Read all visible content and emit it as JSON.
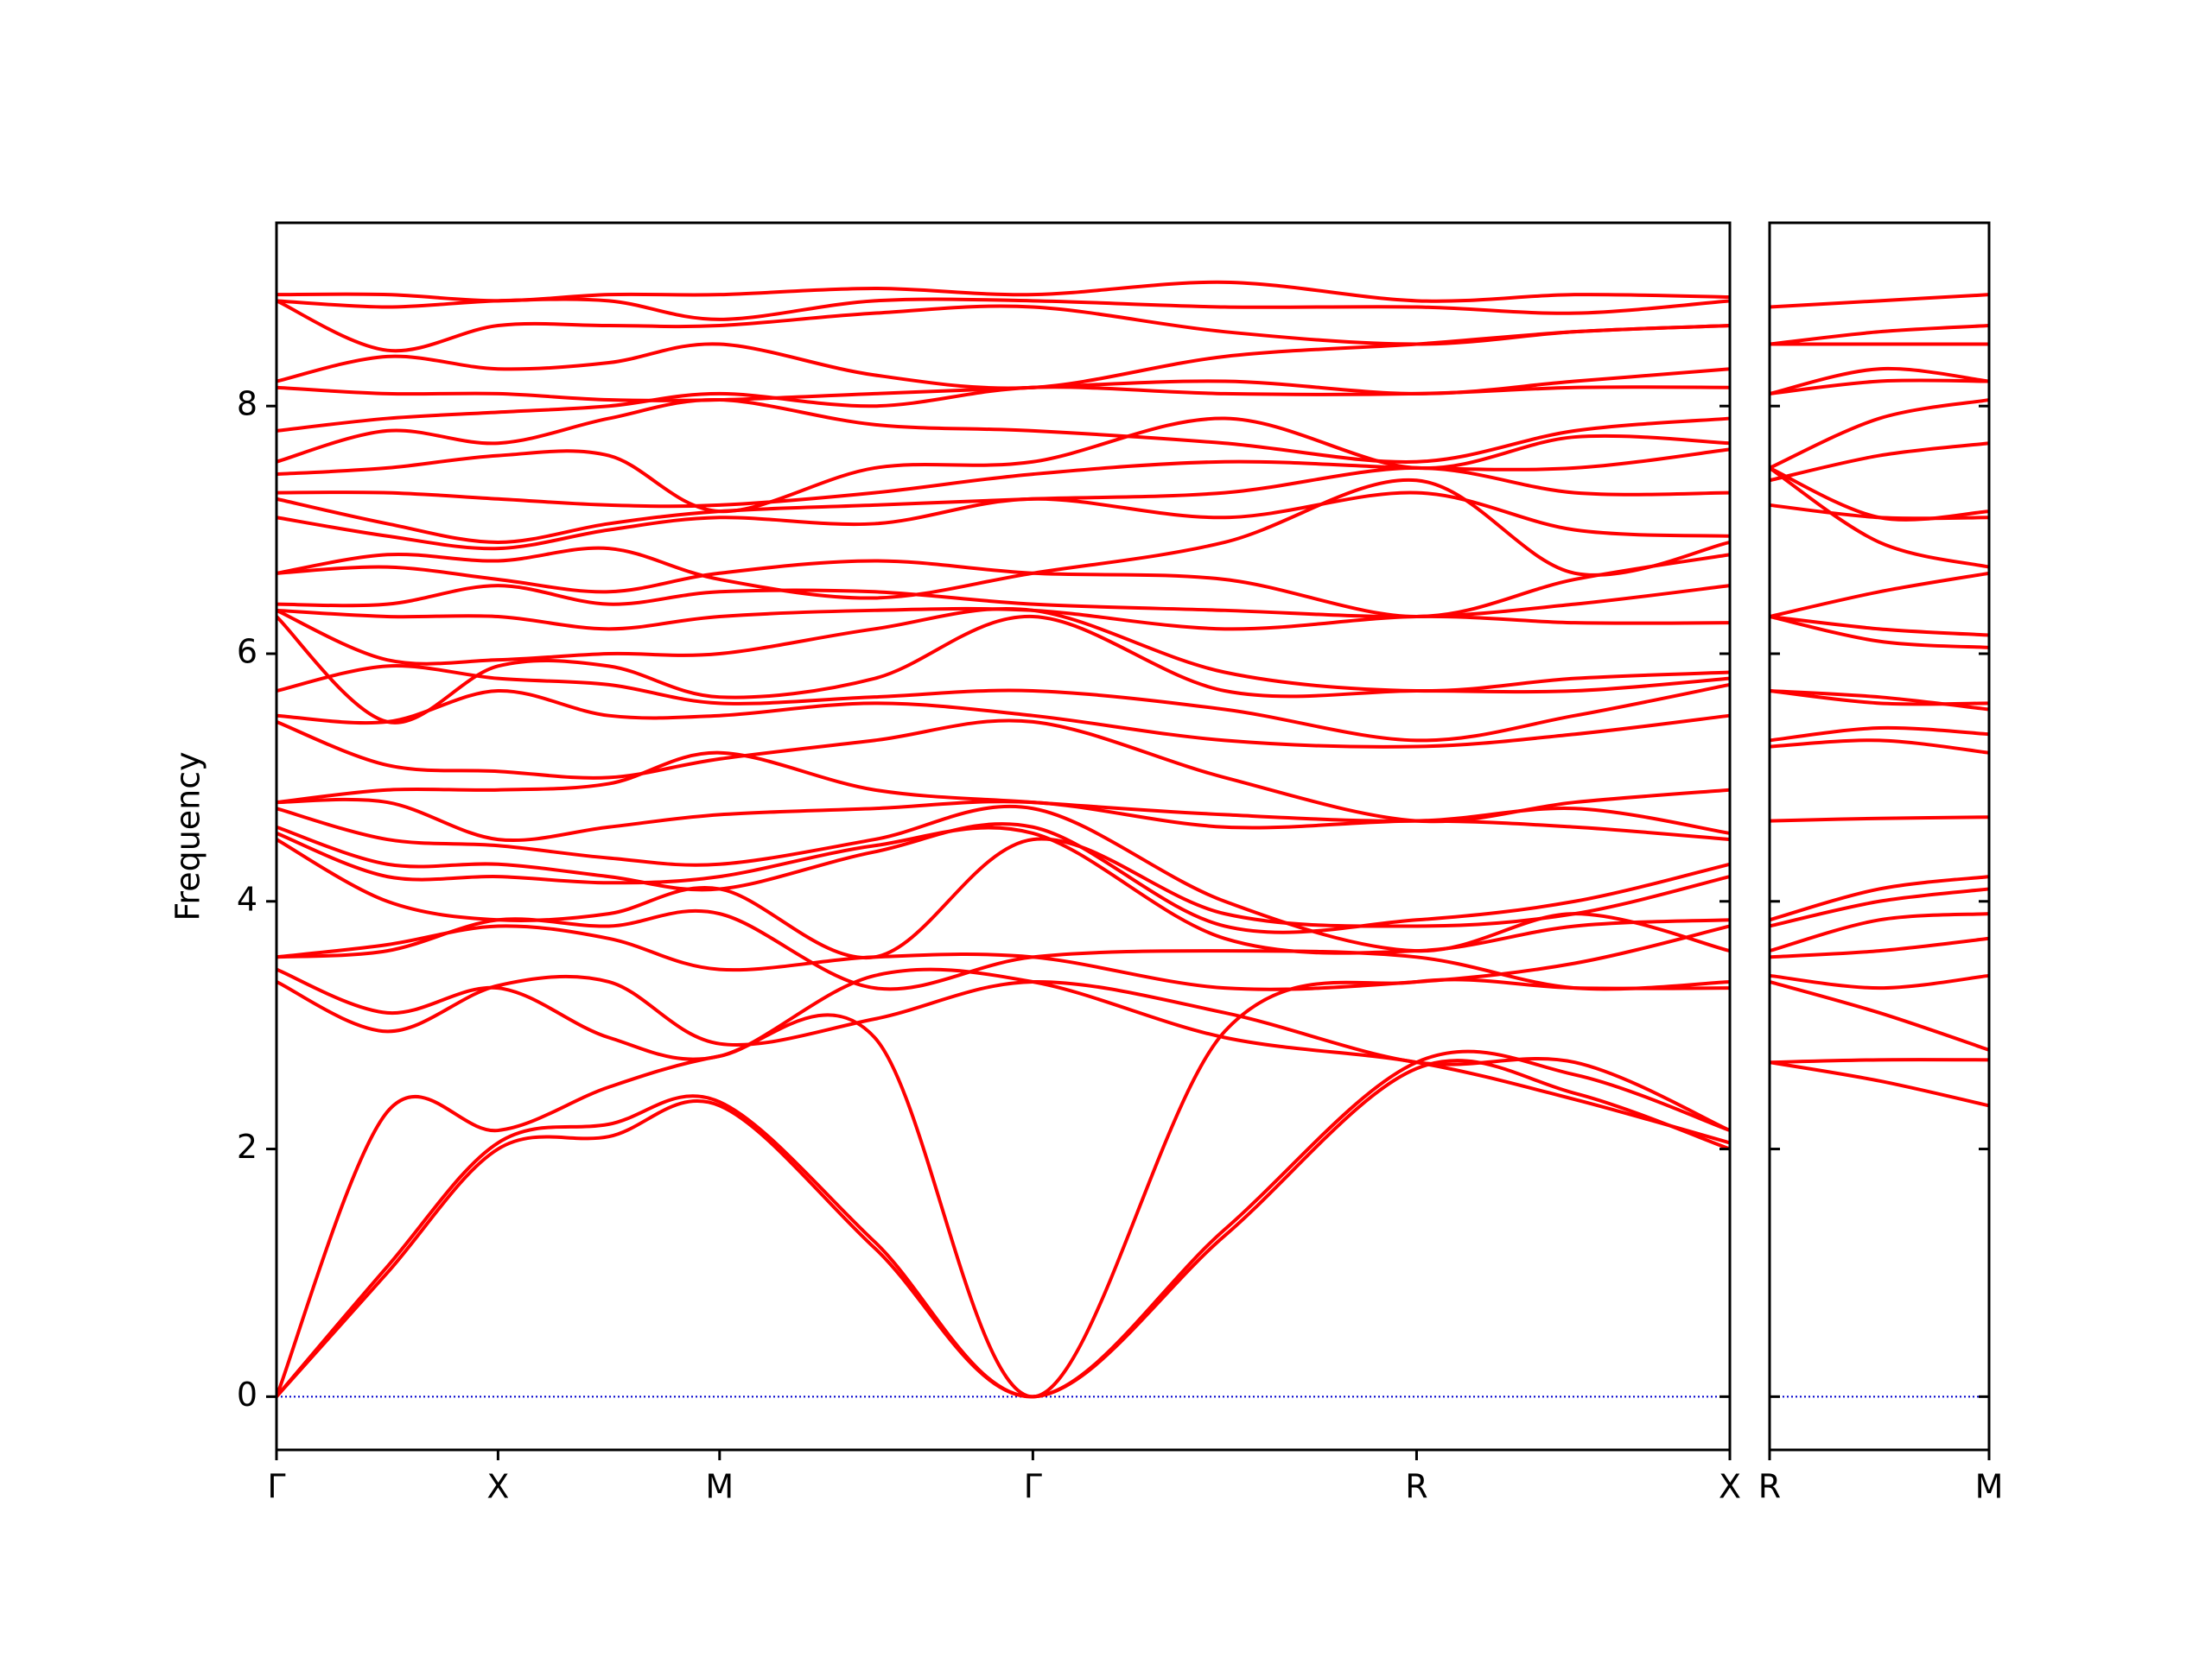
{
  "chart_data": [
    {
      "type": "line",
      "ylabel": "Frequency",
      "color": "#ff0000",
      "zero_line_color": "#0000cc",
      "xlim": [
        0,
        3.28
      ],
      "ylim": [
        -0.43,
        9.48
      ],
      "yticks": [
        0,
        2,
        4,
        6,
        8
      ],
      "xticks": [
        {
          "value": 0,
          "label": "Γ"
        },
        {
          "value": 0.5,
          "label": "X"
        },
        {
          "value": 1.0,
          "label": "M"
        },
        {
          "value": 1.707,
          "label": "Γ"
        },
        {
          "value": 2.573,
          "label": "R"
        },
        {
          "value": 3.28,
          "label": "X"
        }
      ],
      "x": [
        0,
        0.25,
        0.5,
        0.75,
        1.0,
        1.35,
        1.707,
        2.14,
        2.573,
        2.93,
        3.28
      ],
      "series": [
        {
          "values": [
            0,
            1.0,
            2.0,
            2.1,
            2.35,
            1.2,
            0,
            1.3,
            2.65,
            2.45,
            2.0
          ]
        },
        {
          "values": [
            0,
            1.05,
            2.05,
            2.2,
            2.38,
            1.25,
            0,
            1.35,
            2.7,
            2.6,
            2.15
          ]
        },
        {
          "values": [
            0,
            2.3,
            2.15,
            2.5,
            2.75,
            2.9,
            0,
            2.95,
            3.35,
            3.3,
            3.3
          ]
        },
        {
          "values": [
            3.35,
            2.95,
            3.32,
            3.35,
            2.85,
            3.05,
            3.35,
            3.1,
            2.7,
            2.7,
            2.15
          ]
        },
        {
          "values": [
            3.45,
            3.1,
            3.3,
            2.9,
            2.75,
            3.4,
            3.35,
            2.9,
            2.7,
            2.4,
            2.05
          ]
        },
        {
          "values": [
            3.55,
            3.65,
            3.8,
            3.7,
            3.45,
            3.55,
            3.55,
            3.3,
            3.35,
            3.5,
            3.8
          ]
        },
        {
          "values": [
            3.55,
            3.6,
            3.85,
            3.8,
            3.9,
            3.3,
            3.55,
            3.6,
            3.55,
            3.3,
            3.35
          ]
        },
        {
          "values": [
            4.5,
            4.0,
            3.85,
            3.9,
            4.1,
            3.55,
            4.5,
            3.9,
            3.8,
            3.9,
            4.2
          ]
        },
        {
          "values": [
            4.55,
            4.2,
            4.2,
            4.15,
            4.2,
            4.45,
            4.55,
            3.7,
            3.6,
            3.8,
            3.85
          ]
        },
        {
          "values": [
            4.6,
            4.3,
            4.3,
            4.2,
            4.1,
            4.4,
            4.6,
            3.8,
            3.85,
            4.0,
            4.3
          ]
        },
        {
          "values": [
            4.75,
            4.5,
            4.45,
            4.35,
            4.3,
            4.5,
            4.75,
            4.0,
            3.6,
            3.9,
            3.6
          ]
        },
        {
          "values": [
            4.8,
            4.8,
            4.5,
            4.6,
            4.7,
            4.75,
            4.8,
            4.6,
            4.65,
            4.6,
            4.5
          ]
        },
        {
          "values": [
            4.8,
            4.9,
            4.9,
            4.95,
            5.2,
            4.9,
            4.8,
            4.7,
            4.65,
            4.75,
            4.55
          ]
        },
        {
          "values": [
            5.45,
            5.1,
            5.05,
            5.0,
            5.15,
            5.3,
            5.45,
            5.0,
            4.65,
            4.8,
            4.9
          ]
        },
        {
          "values": [
            5.5,
            5.45,
            5.7,
            5.5,
            5.5,
            5.6,
            5.5,
            5.3,
            5.25,
            5.35,
            5.5
          ]
        },
        {
          "values": [
            5.7,
            5.9,
            5.8,
            5.75,
            5.6,
            5.65,
            5.7,
            5.55,
            5.3,
            5.5,
            5.75
          ]
        },
        {
          "values": [
            6.3,
            5.45,
            5.9,
            5.9,
            5.65,
            5.8,
            6.3,
            5.7,
            5.7,
            5.7,
            5.8
          ]
        },
        {
          "values": [
            6.35,
            5.95,
            5.95,
            6.0,
            6.0,
            6.2,
            6.35,
            5.85,
            5.7,
            5.8,
            5.85
          ]
        },
        {
          "values": [
            6.35,
            6.3,
            6.3,
            6.2,
            6.3,
            6.35,
            6.35,
            6.2,
            6.3,
            6.25,
            6.25
          ]
        },
        {
          "values": [
            6.4,
            6.4,
            6.55,
            6.4,
            6.5,
            6.5,
            6.4,
            6.35,
            6.3,
            6.4,
            6.55
          ]
        },
        {
          "values": [
            6.65,
            6.7,
            6.6,
            6.5,
            6.65,
            6.75,
            6.65,
            6.6,
            6.3,
            6.6,
            6.8
          ]
        },
        {
          "values": [
            6.65,
            6.8,
            6.75,
            6.85,
            6.6,
            6.45,
            6.65,
            6.9,
            7.4,
            6.65,
            6.9
          ]
        },
        {
          "values": [
            7.1,
            6.95,
            6.85,
            7.0,
            7.1,
            7.05,
            7.25,
            7.1,
            7.3,
            7.0,
            6.95
          ]
        },
        {
          "values": [
            7.25,
            7.05,
            6.9,
            7.05,
            7.15,
            7.2,
            7.25,
            7.3,
            7.5,
            7.3,
            7.3
          ]
        },
        {
          "values": [
            7.3,
            7.3,
            7.25,
            7.2,
            7.2,
            7.3,
            7.45,
            7.55,
            7.5,
            7.5,
            7.65
          ]
        },
        {
          "values": [
            7.45,
            7.5,
            7.6,
            7.6,
            7.15,
            7.5,
            7.55,
            7.9,
            7.5,
            7.75,
            7.7
          ]
        },
        {
          "values": [
            7.55,
            7.8,
            7.7,
            7.9,
            8.05,
            7.85,
            7.8,
            7.7,
            7.55,
            7.8,
            7.9
          ]
        },
        {
          "values": [
            7.8,
            7.9,
            7.95,
            8.0,
            8.1,
            8.0,
            8.15,
            8.1,
            8.1,
            8.15,
            8.15
          ]
        },
        {
          "values": [
            8.15,
            8.1,
            8.1,
            8.05,
            8.05,
            8.1,
            8.15,
            8.2,
            8.1,
            8.2,
            8.3
          ]
        },
        {
          "values": [
            8.2,
            8.4,
            8.3,
            8.35,
            8.5,
            8.25,
            8.15,
            8.4,
            8.5,
            8.6,
            8.65
          ]
        },
        {
          "values": [
            8.85,
            8.45,
            8.65,
            8.65,
            8.65,
            8.75,
            8.8,
            8.6,
            8.5,
            8.6,
            8.65
          ]
        },
        {
          "values": [
            8.85,
            8.8,
            8.85,
            8.85,
            8.7,
            8.85,
            8.85,
            8.8,
            8.8,
            8.75,
            8.85
          ]
        },
        {
          "values": [
            8.9,
            8.9,
            8.85,
            8.9,
            8.9,
            8.95,
            8.9,
            9.0,
            8.85,
            8.9,
            8.88
          ]
        }
      ]
    },
    {
      "type": "line",
      "color": "#ff0000",
      "zero_line_color": "#0000cc",
      "xlim": [
        0,
        0.5
      ],
      "ylim": [
        -0.43,
        9.48
      ],
      "yticks": [
        0,
        2,
        4,
        6,
        8
      ],
      "xticks": [
        {
          "value": 0,
          "label": "R"
        },
        {
          "value": 0.5,
          "label": "M"
        }
      ],
      "x": [
        0,
        0.25,
        0.5
      ],
      "series": [
        {
          "values": [
            2.7,
            2.72,
            2.72
          ]
        },
        {
          "values": [
            2.7,
            2.55,
            2.35
          ]
        },
        {
          "values": [
            3.35,
            3.1,
            2.8
          ]
        },
        {
          "values": [
            3.4,
            3.3,
            3.4
          ]
        },
        {
          "values": [
            3.55,
            3.6,
            3.7
          ]
        },
        {
          "values": [
            3.6,
            3.85,
            3.9
          ]
        },
        {
          "values": [
            3.8,
            4.0,
            4.1
          ]
        },
        {
          "values": [
            3.85,
            4.1,
            4.2
          ]
        },
        {
          "values": [
            4.65,
            4.67,
            4.68
          ]
        },
        {
          "values": [
            5.25,
            5.3,
            5.2
          ]
        },
        {
          "values": [
            5.3,
            5.4,
            5.35
          ]
        },
        {
          "values": [
            5.7,
            5.6,
            5.6
          ]
        },
        {
          "values": [
            5.7,
            5.65,
            5.55
          ]
        },
        {
          "values": [
            6.3,
            6.1,
            6.05
          ]
        },
        {
          "values": [
            6.3,
            6.2,
            6.15
          ]
        },
        {
          "values": [
            6.3,
            6.5,
            6.65
          ]
        },
        {
          "values": [
            7.5,
            6.9,
            6.7
          ]
        },
        {
          "values": [
            7.2,
            7.1,
            7.1
          ]
        },
        {
          "values": [
            7.5,
            7.1,
            7.15
          ]
        },
        {
          "values": [
            7.4,
            7.6,
            7.7
          ]
        },
        {
          "values": [
            7.5,
            7.9,
            8.05
          ]
        },
        {
          "values": [
            8.1,
            8.2,
            8.2
          ]
        },
        {
          "values": [
            8.1,
            8.3,
            8.2
          ]
        },
        {
          "values": [
            8.5,
            8.5,
            8.5
          ]
        },
        {
          "values": [
            8.5,
            8.6,
            8.65
          ]
        },
        {
          "values": [
            8.8,
            8.85,
            8.9
          ]
        }
      ]
    }
  ]
}
